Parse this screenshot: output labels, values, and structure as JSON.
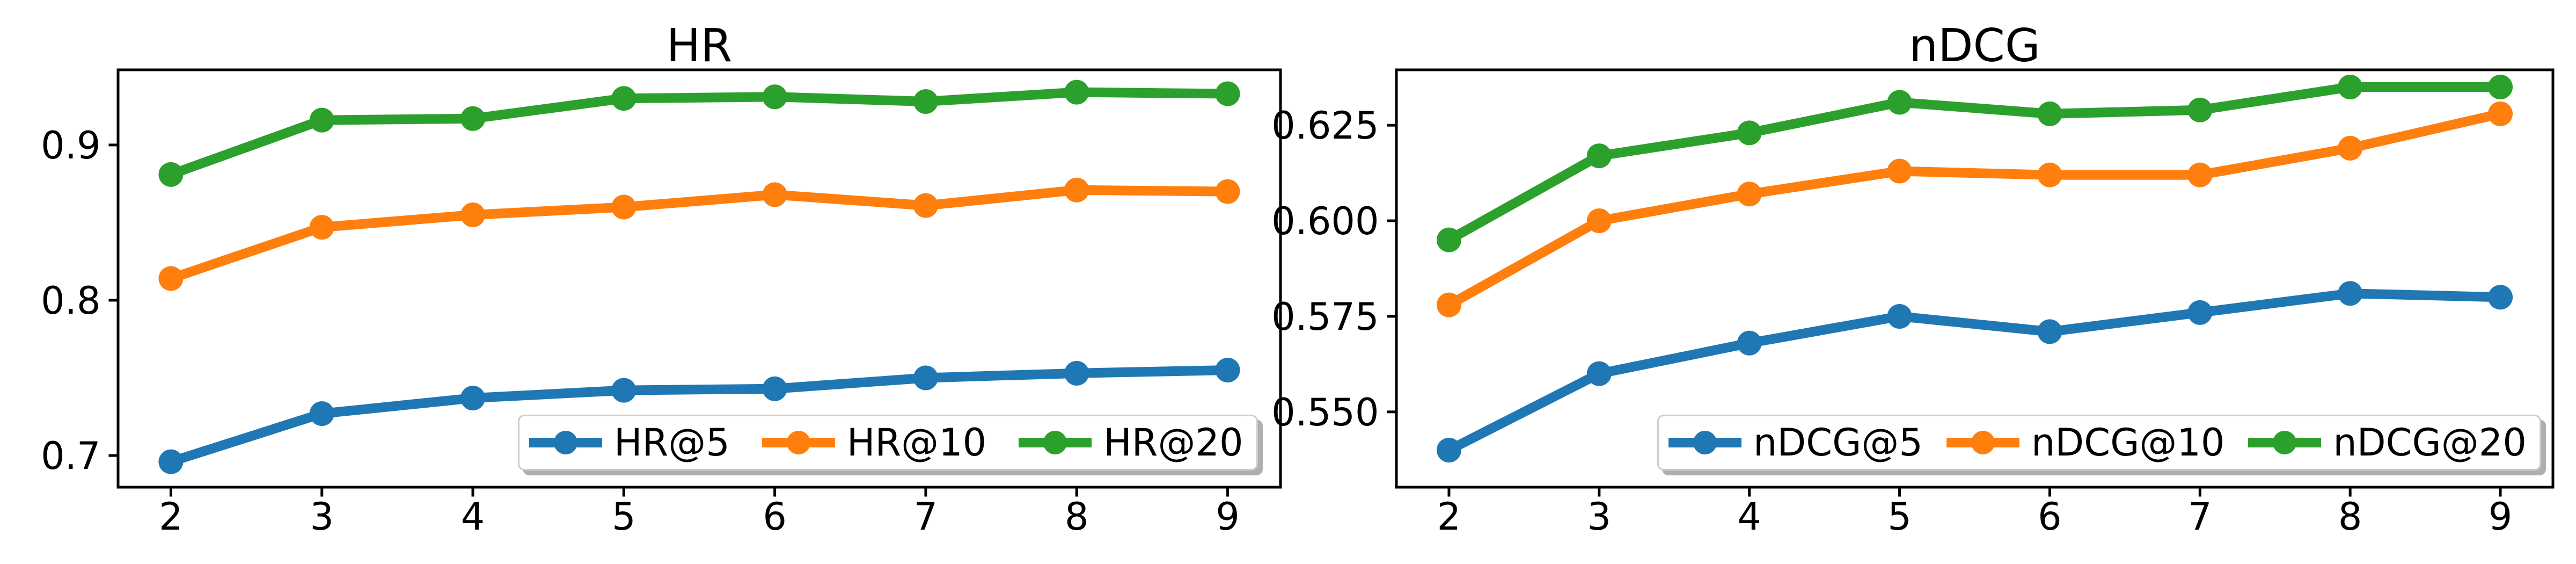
{
  "figure": {
    "background": "#ffffff"
  },
  "chart_data": [
    {
      "type": "line",
      "title": "HR",
      "x": [
        2,
        3,
        4,
        5,
        6,
        7,
        8,
        9
      ],
      "xlim": [
        1.65,
        9.35
      ],
      "ylim": [
        0.6796,
        0.9484
      ],
      "grid": false,
      "xticks": {
        "values": [
          2,
          3,
          4,
          5,
          6,
          7,
          8,
          9
        ],
        "labels": [
          "2",
          "3",
          "4",
          "5",
          "6",
          "7",
          "8",
          "9"
        ]
      },
      "yticks": {
        "values": [
          0.7,
          0.8,
          0.9
        ],
        "labels": [
          "0.7",
          "0.8",
          "0.9"
        ]
      },
      "legend": {
        "location": "lower right inside axes",
        "labels": [
          "HR@5",
          "HR@10",
          "HR@20"
        ]
      },
      "series": [
        {
          "name": "HR@5",
          "color": "#1f77b4",
          "values": [
            0.696,
            0.727,
            0.737,
            0.742,
            0.743,
            0.75,
            0.753,
            0.755
          ]
        },
        {
          "name": "HR@10",
          "color": "#ff7f0e",
          "values": [
            0.814,
            0.847,
            0.855,
            0.86,
            0.868,
            0.861,
            0.871,
            0.87
          ]
        },
        {
          "name": "HR@20",
          "color": "#2ca02c",
          "values": [
            0.881,
            0.916,
            0.917,
            0.93,
            0.931,
            0.928,
            0.934,
            0.933
          ]
        }
      ]
    },
    {
      "type": "line",
      "title": "nDCG",
      "x": [
        2,
        3,
        4,
        5,
        6,
        7,
        8,
        9
      ],
      "xlim": [
        1.65,
        9.35
      ],
      "ylim": [
        0.5303,
        0.6395
      ],
      "grid": false,
      "xticks": {
        "values": [
          2,
          3,
          4,
          5,
          6,
          7,
          8,
          9
        ],
        "labels": [
          "2",
          "3",
          "4",
          "5",
          "6",
          "7",
          "8",
          "9"
        ]
      },
      "yticks": {
        "values": [
          0.55,
          0.575,
          0.6,
          0.625
        ],
        "labels": [
          "0.550",
          "0.575",
          "0.600",
          "0.625"
        ]
      },
      "legend": {
        "location": "lower right inside axes",
        "labels": [
          "nDCG@5",
          "nDCG@10",
          "nDCG@20"
        ]
      },
      "series": [
        {
          "name": "nDCG@5",
          "color": "#1f77b4",
          "values": [
            0.54,
            0.56,
            0.568,
            0.575,
            0.571,
            0.576,
            0.581,
            0.58
          ]
        },
        {
          "name": "nDCG@10",
          "color": "#ff7f0e",
          "values": [
            0.578,
            0.6,
            0.607,
            0.613,
            0.612,
            0.612,
            0.619,
            0.628
          ]
        },
        {
          "name": "nDCG@20",
          "color": "#2ca02c",
          "values": [
            0.595,
            0.617,
            0.623,
            0.631,
            0.628,
            0.629,
            0.635,
            0.635
          ]
        }
      ]
    }
  ]
}
